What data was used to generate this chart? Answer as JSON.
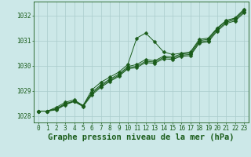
{
  "x": [
    0,
    1,
    2,
    3,
    4,
    5,
    6,
    7,
    8,
    9,
    10,
    11,
    12,
    13,
    14,
    15,
    16,
    17,
    18,
    19,
    20,
    21,
    22,
    23
  ],
  "line1": [
    1028.2,
    1028.2,
    1028.35,
    1028.55,
    1028.65,
    1028.42,
    1029.05,
    1029.35,
    1029.55,
    1029.75,
    1030.05,
    1031.1,
    1031.3,
    1030.95,
    1030.55,
    1030.45,
    1030.5,
    1030.55,
    1031.05,
    1031.1,
    1031.5,
    1031.8,
    1031.9,
    1032.25
  ],
  "line2": [
    1028.2,
    1028.2,
    1028.3,
    1028.5,
    1028.6,
    1028.42,
    1028.95,
    1029.25,
    1029.47,
    1029.67,
    1029.97,
    1030.05,
    1030.25,
    1030.2,
    1030.38,
    1030.35,
    1030.47,
    1030.5,
    1031.0,
    1031.05,
    1031.48,
    1031.78,
    1031.88,
    1032.2
  ],
  "line3": [
    1028.2,
    1028.2,
    1028.28,
    1028.47,
    1028.6,
    1028.42,
    1028.9,
    1029.2,
    1029.42,
    1029.62,
    1029.92,
    1029.98,
    1030.18,
    1030.15,
    1030.33,
    1030.3,
    1030.42,
    1030.45,
    1030.95,
    1031.0,
    1031.43,
    1031.73,
    1031.83,
    1032.15
  ],
  "line4": [
    1028.2,
    1028.2,
    1028.25,
    1028.45,
    1028.58,
    1028.38,
    1028.85,
    1029.15,
    1029.38,
    1029.58,
    1029.88,
    1029.93,
    1030.13,
    1030.1,
    1030.28,
    1030.25,
    1030.38,
    1030.4,
    1030.9,
    1030.95,
    1031.38,
    1031.68,
    1031.78,
    1032.1
  ],
  "bg_color": "#cce8e8",
  "grid_color": "#aacccc",
  "line_color": "#1a5c1a",
  "marker": "D",
  "marker_size": 2.5,
  "xlabel": "Graphe pression niveau de la mer (hPa)",
  "xlim": [
    -0.5,
    23.5
  ],
  "ylim": [
    1027.75,
    1032.55
  ],
  "yticks": [
    1028,
    1029,
    1030,
    1031,
    1032
  ],
  "xticks": [
    0,
    1,
    2,
    3,
    4,
    5,
    6,
    7,
    8,
    9,
    10,
    11,
    12,
    13,
    14,
    15,
    16,
    17,
    18,
    19,
    20,
    21,
    22,
    23
  ],
  "xtick_labels": [
    "0",
    "1",
    "2",
    "3",
    "4",
    "5",
    "6",
    "7",
    "8",
    "9",
    "10",
    "11",
    "12",
    "13",
    "14",
    "15",
    "16",
    "17",
    "18",
    "19",
    "20",
    "21",
    "22",
    "23"
  ],
  "tick_fontsize": 5.5,
  "xlabel_fontsize": 7.5
}
